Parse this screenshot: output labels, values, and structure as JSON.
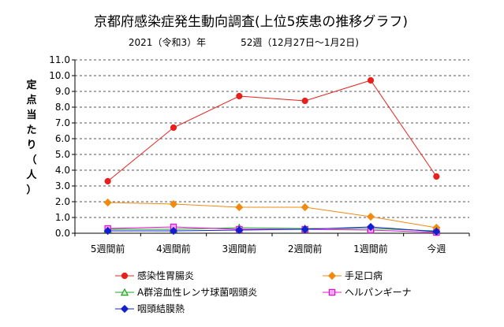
{
  "chart_data": {
    "type": "line",
    "title": "京都府感染症発生動向調査(上位5疾患の推移グラフ)",
    "subtitle_year": "2021（令和3）年",
    "subtitle_week": "52週（12月27日～1月2日)",
    "ylabel_chars": [
      "定",
      "点",
      "当",
      "た",
      "り",
      "（",
      "人",
      "）"
    ],
    "categories": [
      "5週間前",
      "4週間前",
      "3週間前",
      "2週間前",
      "1週間前",
      "今週"
    ],
    "ylim": [
      0,
      11
    ],
    "yticks": [
      "0.0",
      "1.0",
      "2.0",
      "3.0",
      "4.0",
      "5.0",
      "6.0",
      "7.0",
      "8.0",
      "9.0",
      "10.0",
      "11.0"
    ],
    "grid": true,
    "legend_position": "bottom",
    "series": [
      {
        "name": "感染性胃腸炎",
        "color": "#e8201c",
        "marker": "circle",
        "values": [
          3.3,
          6.7,
          8.7,
          8.4,
          9.7,
          3.6
        ]
      },
      {
        "name": "手足口病",
        "color": "#f08a10",
        "marker": "diamond",
        "values": [
          1.95,
          1.85,
          1.65,
          1.65,
          1.05,
          0.35
        ]
      },
      {
        "name": "A群溶血性レンサ球菌咽頭炎",
        "color": "#20a020",
        "marker": "triangle",
        "values": [
          0.25,
          0.25,
          0.35,
          0.3,
          0.3,
          0.15
        ]
      },
      {
        "name": "ヘルパンギーナ",
        "color": "#e010d0",
        "marker": "square",
        "values": [
          0.3,
          0.4,
          0.25,
          0.25,
          0.2,
          0.05
        ]
      },
      {
        "name": "咽頭結膜熱",
        "color": "#1020d0",
        "marker": "diamond",
        "values": [
          0.15,
          0.15,
          0.2,
          0.25,
          0.4,
          0.1
        ]
      }
    ]
  }
}
